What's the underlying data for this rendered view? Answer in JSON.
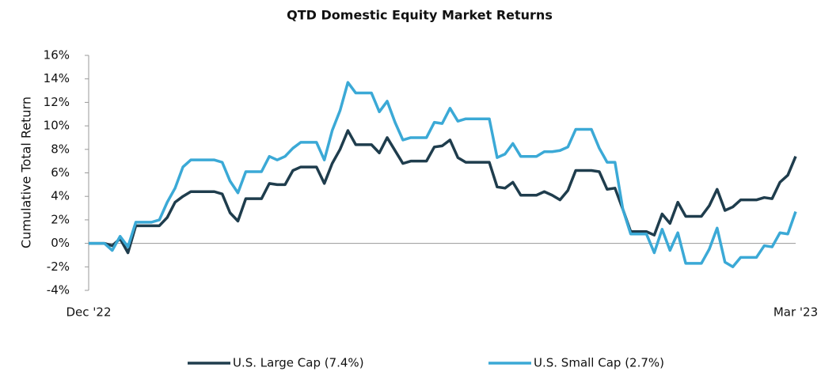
{
  "chart_data": {
    "type": "line",
    "title": "QTD Domestic Equity Market Returns",
    "y_label": "Cumulative Total Return",
    "categories": [
      "Dec '22",
      null,
      null,
      null,
      null,
      null,
      null,
      null,
      null,
      null,
      null,
      null,
      null,
      null,
      null,
      null,
      null,
      null,
      null,
      null,
      null,
      null,
      null,
      null,
      null,
      null,
      null,
      null,
      null,
      null,
      null,
      null,
      null,
      null,
      null,
      null,
      null,
      null,
      null,
      null,
      null,
      null,
      null,
      null,
      null,
      null,
      null,
      null,
      null,
      null,
      null,
      null,
      null,
      null,
      null,
      null,
      null,
      null,
      null,
      null,
      null,
      null,
      null,
      null,
      null,
      null,
      null,
      null,
      null,
      null,
      null,
      null,
      null,
      null,
      null,
      null,
      null,
      null,
      null,
      null,
      null,
      null,
      null,
      null,
      null,
      null,
      null,
      null,
      null,
      null,
      "Mar '23"
    ],
    "series": [
      {
        "name": "U.S. Large Cap (7.4%)",
        "color": "#1f3d4d",
        "values": [
          0,
          0,
          0,
          -0.2,
          0.4,
          -0.8,
          1.5,
          1.5,
          1.5,
          1.5,
          2.2,
          3.5,
          4.0,
          4.4,
          4.4,
          4.4,
          4.4,
          4.2,
          2.6,
          1.9,
          3.8,
          3.8,
          3.8,
          5.1,
          5.0,
          5.0,
          6.2,
          6.5,
          6.5,
          6.5,
          5.1,
          6.8,
          8.0,
          9.6,
          8.4,
          8.4,
          8.4,
          7.7,
          9.0,
          7.9,
          6.8,
          7.0,
          7.0,
          7.0,
          8.2,
          8.3,
          8.8,
          7.3,
          6.9,
          6.9,
          6.9,
          6.9,
          4.8,
          4.7,
          5.2,
          4.1,
          4.1,
          4.1,
          4.4,
          4.1,
          3.7,
          4.5,
          6.2,
          6.2,
          6.2,
          6.1,
          4.6,
          4.7,
          2.9,
          1.0,
          1.0,
          1.0,
          0.7,
          2.5,
          1.7,
          3.5,
          2.3,
          2.3,
          2.3,
          3.2,
          4.6,
          2.8,
          3.1,
          3.7,
          3.7,
          3.7,
          3.9,
          3.8,
          5.2,
          5.8,
          7.4
        ]
      },
      {
        "name": "U.S. Small Cap (2.7%)",
        "color": "#3ba9d6",
        "values": [
          0,
          0,
          0,
          -0.6,
          0.6,
          -0.3,
          1.8,
          1.8,
          1.8,
          2.0,
          3.5,
          4.7,
          6.5,
          7.1,
          7.1,
          7.1,
          7.1,
          6.9,
          5.3,
          4.3,
          6.1,
          6.1,
          6.1,
          7.4,
          7.1,
          7.4,
          8.1,
          8.6,
          8.6,
          8.6,
          7.1,
          9.6,
          11.3,
          13.7,
          12.8,
          12.8,
          12.8,
          11.2,
          12.1,
          10.3,
          8.8,
          9.0,
          9.0,
          9.0,
          10.3,
          10.2,
          11.5,
          10.4,
          10.6,
          10.6,
          10.6,
          10.6,
          7.3,
          7.6,
          8.5,
          7.4,
          7.4,
          7.4,
          7.8,
          7.8,
          7.9,
          8.2,
          9.7,
          9.7,
          9.7,
          8.1,
          6.9,
          6.9,
          2.9,
          0.8,
          0.8,
          0.8,
          -0.8,
          1.2,
          -0.6,
          0.9,
          -1.7,
          -1.7,
          -1.7,
          -0.5,
          1.3,
          -1.6,
          -2.0,
          -1.2,
          -1.2,
          -1.2,
          -0.2,
          -0.3,
          0.9,
          0.8,
          2.7
        ]
      }
    ],
    "ylim": [
      -4,
      16
    ],
    "yticks": [
      {
        "value": -4,
        "label": "-4%"
      },
      {
        "value": -2,
        "label": "-2%"
      },
      {
        "value": 0,
        "label": "0%"
      },
      {
        "value": 2,
        "label": "2%"
      },
      {
        "value": 4,
        "label": "4%"
      },
      {
        "value": 6,
        "label": "6%"
      },
      {
        "value": 8,
        "label": "8%"
      },
      {
        "value": 10,
        "label": "10%"
      },
      {
        "value": 12,
        "label": "12%"
      },
      {
        "value": 14,
        "label": "14%"
      },
      {
        "value": 16,
        "label": "16%"
      }
    ],
    "legend": "bottom"
  }
}
